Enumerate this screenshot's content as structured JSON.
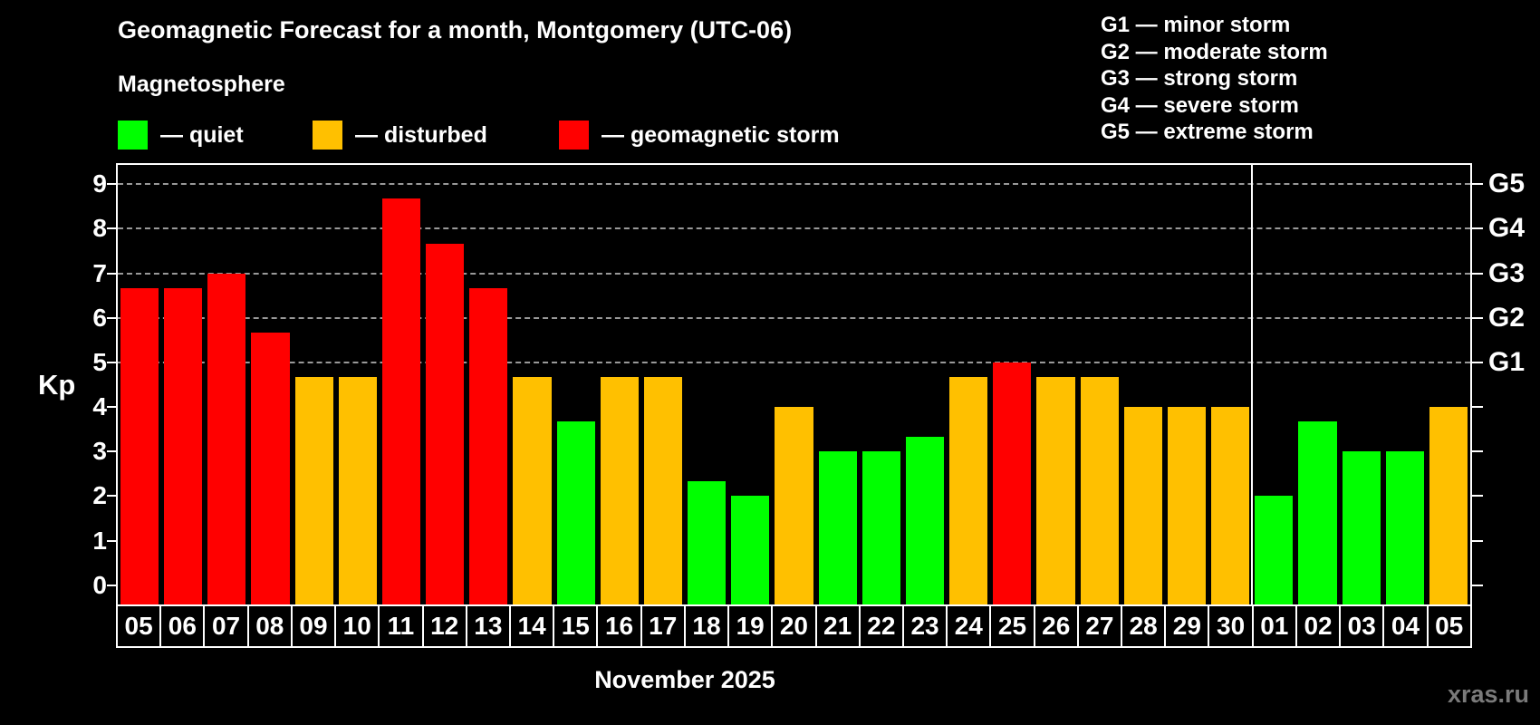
{
  "watermark": "xras.ru",
  "chart_data": {
    "type": "bar",
    "title": "Geomagnetic Forecast for a month, Montgomery (UTC-06)",
    "subtitle": "Magnetosphere",
    "xlabel": "November 2025",
    "ylabel": "Kp",
    "ylim": [
      0,
      9
    ],
    "grid_on": true,
    "grid_kp_levels": [
      5,
      6,
      7,
      8,
      9
    ],
    "ytick_labels": [
      "0",
      "1",
      "2",
      "3",
      "4",
      "5",
      "6",
      "7",
      "8",
      "9"
    ],
    "legend": {
      "items": [
        {
          "key": "quiet",
          "label": "— quiet",
          "color": "#00FF00"
        },
        {
          "key": "disturbed",
          "label": "— disturbed",
          "color": "#FFC000"
        },
        {
          "key": "storm",
          "label": "— geomagnetic storm",
          "color": "#FF0000"
        }
      ]
    },
    "g_storm_legend": {
      "items": [
        "G1 — minor storm",
        "G2 — moderate storm",
        "G3 — strong storm",
        "G4 — severe storm",
        "G5 — extreme storm"
      ]
    },
    "g_levels": [
      {
        "kp": 5,
        "label": "G1"
      },
      {
        "kp": 6,
        "label": "G2"
      },
      {
        "kp": 7,
        "label": "G3"
      },
      {
        "kp": 8,
        "label": "G4"
      },
      {
        "kp": 9,
        "label": "G5"
      }
    ],
    "categories": [
      "05",
      "06",
      "07",
      "08",
      "09",
      "10",
      "11",
      "12",
      "13",
      "14",
      "15",
      "16",
      "17",
      "18",
      "19",
      "20",
      "21",
      "22",
      "23",
      "24",
      "25",
      "26",
      "27",
      "28",
      "29",
      "30",
      "01",
      "02",
      "03",
      "04",
      "05"
    ],
    "values": [
      6.67,
      6.67,
      7,
      5.67,
      4.67,
      4.67,
      8.67,
      7.67,
      6.67,
      4.67,
      3.67,
      4.67,
      4.67,
      2.33,
      2,
      4,
      3,
      3,
      3.33,
      4.67,
      5,
      4.67,
      4.67,
      4,
      4,
      4,
      2,
      3.67,
      3,
      3,
      4
    ],
    "statuses": [
      "storm",
      "storm",
      "storm",
      "storm",
      "disturbed",
      "disturbed",
      "storm",
      "storm",
      "storm",
      "disturbed",
      "quiet",
      "disturbed",
      "disturbed",
      "quiet",
      "quiet",
      "disturbed",
      "quiet",
      "quiet",
      "quiet",
      "disturbed",
      "storm",
      "disturbed",
      "disturbed",
      "disturbed",
      "disturbed",
      "disturbed",
      "quiet",
      "quiet",
      "quiet",
      "quiet",
      "disturbed"
    ],
    "status_colors": {
      "quiet": "#00FF00",
      "disturbed": "#FFC000",
      "storm": "#FF0000"
    },
    "divider_after_index": 25
  }
}
